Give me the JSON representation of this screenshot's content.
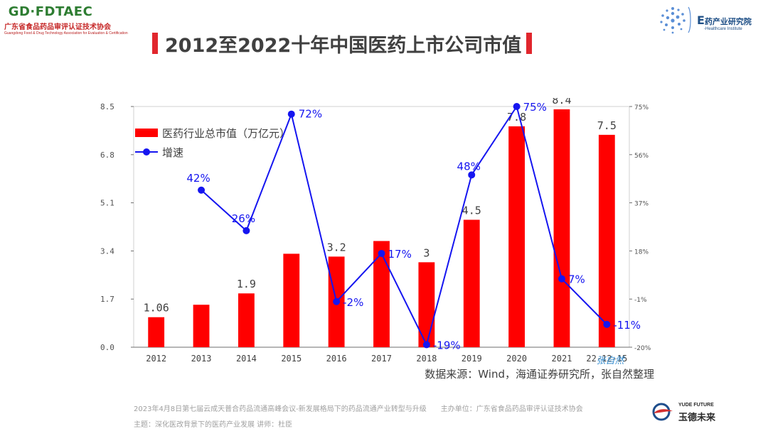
{
  "header": {
    "left_logo": {
      "brand": "GD·FDTAEC",
      "name_cn": "广东省食品药品审评认证技术协会",
      "name_en": "Guangdong Food & Drug Technology Association for Evaluation & Certification"
    },
    "right_logo": {
      "letter": "E",
      "name_cn": "药产业研究院",
      "name_en": "-Healthcare Institute"
    },
    "title": "2012至2022十年中国医药上市公司市值"
  },
  "chart_data": {
    "type": "bar+line",
    "categories": [
      "2012",
      "2013",
      "2014",
      "2015",
      "2016",
      "2017",
      "2018",
      "2019",
      "2020",
      "2021",
      "22-12-15"
    ],
    "series": [
      {
        "name": "医药行业总市值（万亿元）",
        "type": "bar",
        "axis": "left",
        "color": "#ff0000",
        "values": [
          1.06,
          1.5,
          1.9,
          3.3,
          3.2,
          3.75,
          3,
          4.5,
          7.8,
          8.4,
          7.5
        ],
        "labels": [
          "1.06",
          null,
          "1.9",
          null,
          "3.2",
          null,
          "3",
          "4.5",
          "7.8",
          "8.4",
          "7.5"
        ]
      },
      {
        "name": "增速",
        "type": "line",
        "axis": "right",
        "color": "#1515f0",
        "values": [
          null,
          42,
          26,
          72,
          -2,
          17,
          -19,
          48,
          75,
          7,
          -11
        ],
        "labels": [
          null,
          "42%",
          "26%",
          "72%",
          "-2%",
          "17%",
          "-19%",
          "48%",
          "75%",
          "7%",
          "-11%"
        ]
      }
    ],
    "y_left": {
      "min": 0,
      "max": 8.5,
      "ticks": [
        "0.0",
        "1.7",
        "3.4",
        "5.1",
        "6.8",
        "8.5"
      ]
    },
    "y_right": {
      "min": -20,
      "max": 75,
      "ticks": [
        "-20%",
        "-1%",
        "18%",
        "37%",
        "56%",
        "75%"
      ]
    },
    "grid": false,
    "legend_position": "top-left",
    "source": "数据来源：Wind，海通证券研究所，张自然整理",
    "signature": "张自然"
  },
  "footer": {
    "line1": "2023年4月8日第七届云成天普合药品流通高峰会议-新发展格局下的药品流通产业转型与升级　　主办单位：广东省食品药品审评认证技术协会",
    "line2": "主题：深化医改背景下的医药产业发展  讲师：杜臣",
    "yude_en": "YUDE FUTURE",
    "yude_cn": "玉德未来"
  }
}
